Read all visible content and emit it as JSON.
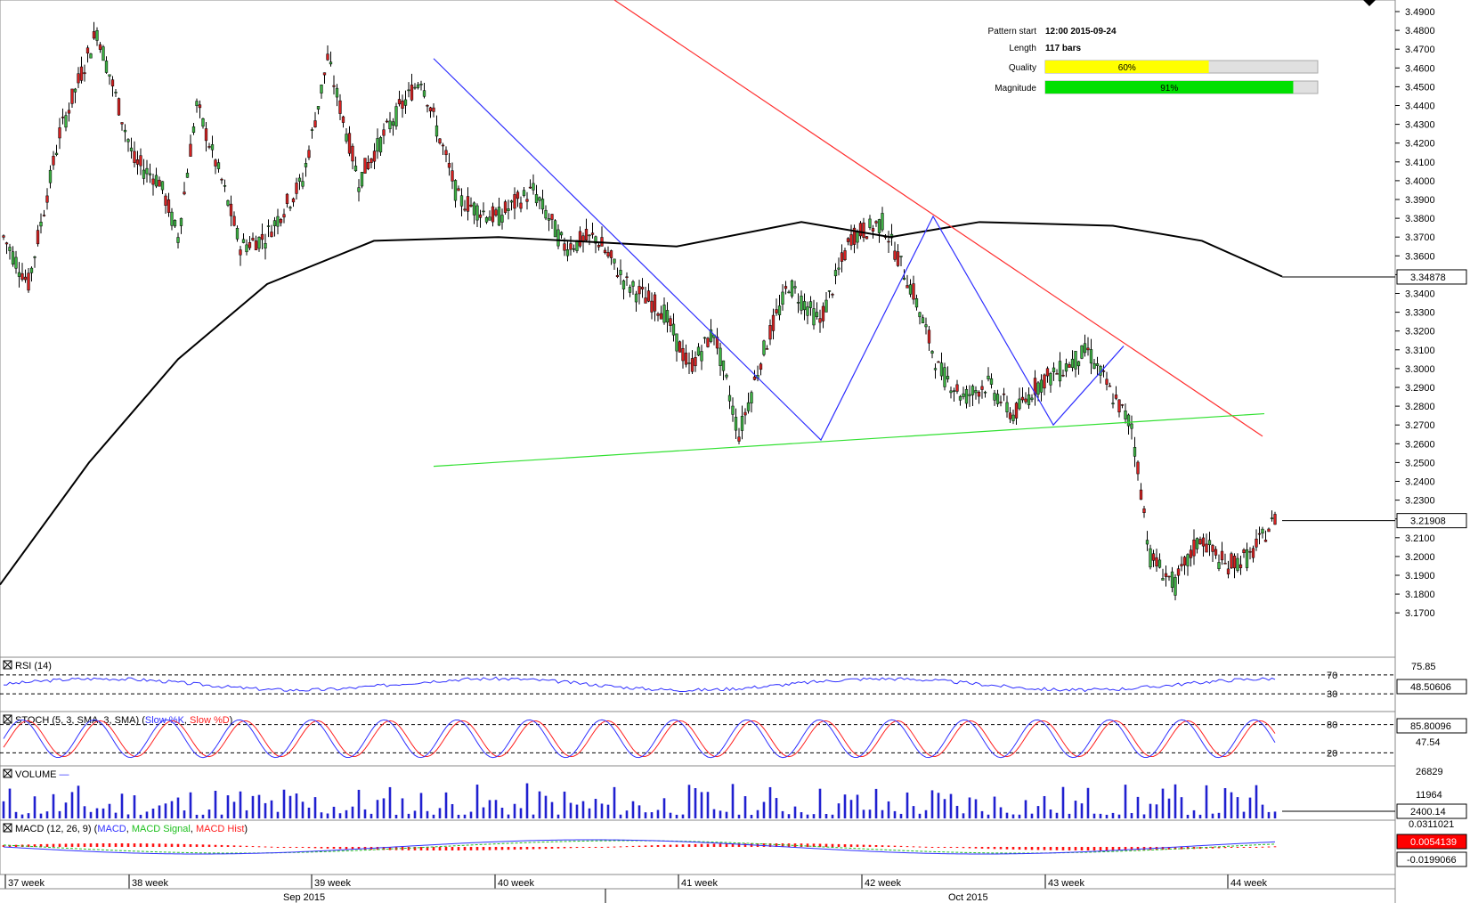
{
  "chart_data": {
    "type": "candlestick",
    "colors": {
      "bull": "#3cb043",
      "bear": "#d42020",
      "sma": "#000000",
      "resistance": "#ff3030",
      "support": "#30e030",
      "pattern": "#3030ff"
    },
    "price_axis": {
      "ticks": [
        "3.4900",
        "3.4800",
        "3.4700",
        "3.4600",
        "3.4500",
        "3.4400",
        "3.4300",
        "3.4200",
        "3.4100",
        "3.4000",
        "3.3900",
        "3.3800",
        "3.3700",
        "3.3600",
        "3.3500",
        "3.3400",
        "3.3300",
        "3.3200",
        "3.3100",
        "3.3000",
        "3.2900",
        "3.2800",
        "3.2700",
        "3.2600",
        "3.2500",
        "3.2400",
        "3.2300",
        "3.2200",
        "3.2100",
        "3.2000",
        "3.1900",
        "3.1800",
        "3.1700"
      ],
      "range": [
        3.165,
        3.495
      ]
    },
    "last_price": "3.21908",
    "sma_last": "3.34878",
    "time_axis": {
      "weeks": [
        "37 week",
        "38 week",
        "39 week",
        "40 week",
        "41 week",
        "42 week",
        "43 week",
        "44 week"
      ],
      "months": [
        "Sep 2015",
        "Oct 2015"
      ]
    },
    "pattern_info": {
      "start_label": "Pattern start",
      "start_value": "12:00 2015-09-24",
      "length_label": "Length",
      "length_value": "117 bars",
      "quality_label": "Quality",
      "quality_value": "60%",
      "quality": 0.6,
      "magnitude_label": "Magnitude",
      "magnitude_value": "91%",
      "magnitude": 0.91,
      "quality_color": "#ffff00",
      "magnitude_color": "#00e000"
    },
    "pattern_lines": [
      {
        "from": [
          0.0,
          3.465
        ],
        "to": [
          0.0,
          3.262
        ]
      },
      {
        "from": [
          0.0,
          3.262
        ],
        "to": [
          0.0,
          3.381
        ]
      },
      {
        "from": [
          0.0,
          3.381
        ],
        "to": [
          0.0,
          3.27
        ]
      },
      {
        "from": [
          0.0,
          3.27
        ],
        "to": [
          0.0,
          3.312
        ]
      }
    ],
    "key_prices": [
      3.465,
      3.262,
      3.381,
      3.27,
      3.312
    ],
    "rsi": {
      "title": "RSI (14)",
      "levels": [
        "70",
        "30"
      ],
      "ticks": [
        "75.85"
      ],
      "last": "48.50606"
    },
    "stoch": {
      "title_prefix": "STOCH (5, 3, SMA, 3, SMA) (",
      "k_label": "Slow %K",
      "sep": ", ",
      "d_label": "Slow %D",
      "title_suffix": ")",
      "levels": [
        "80",
        "20"
      ],
      "ticks": [
        "47.54"
      ],
      "last": "85.80096"
    },
    "volume": {
      "title": "VOLUME",
      "ticks": [
        "26829",
        "11964"
      ],
      "last": "2400.14"
    },
    "macd": {
      "title_prefix": "MACD (12, 26, 9) (",
      "macd_label": "MACD",
      "sep": ", ",
      "signal_label": "MACD Signal",
      "hist_label": "MACD Hist",
      "title_suffix": ")",
      "ticks": [
        "0.0311021"
      ],
      "last_macd": "0.0054139",
      "last_signal": "-0.0199066"
    }
  }
}
